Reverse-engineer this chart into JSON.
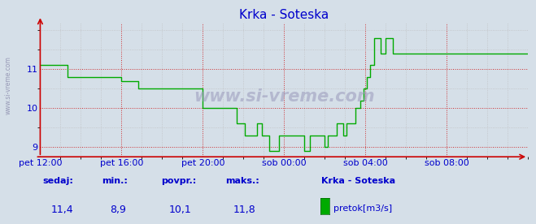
{
  "title": "Krka - Soteska",
  "bg_color": "#d5dfe8",
  "line_color": "#00aa00",
  "axis_color": "#cc0000",
  "grid_color_major": "#cc0000",
  "grid_color_minor": "#bbbbbb",
  "text_color": "#0000cc",
  "ylim": [
    8.75,
    12.2
  ],
  "yticks": [
    9,
    10,
    11
  ],
  "xtick_positions": [
    0,
    48,
    96,
    144,
    192,
    240
  ],
  "xtick_labels": [
    "pet 12:00",
    "pet 16:00",
    "pet 20:00",
    "sob 00:00",
    "sob 04:00",
    "sob 08:00"
  ],
  "watermark": "www.si-vreme.com",
  "footer_labels": [
    "sedaj:",
    "min.:",
    "povpr.:",
    "maks.:"
  ],
  "footer_values": [
    "11,4",
    "8,9",
    "10,1",
    "11,8"
  ],
  "footer_station": "Krka - Soteska",
  "footer_legend": "pretok[m3/s]",
  "legend_color": "#00aa00",
  "sidewater": "www.si-vreme.com"
}
